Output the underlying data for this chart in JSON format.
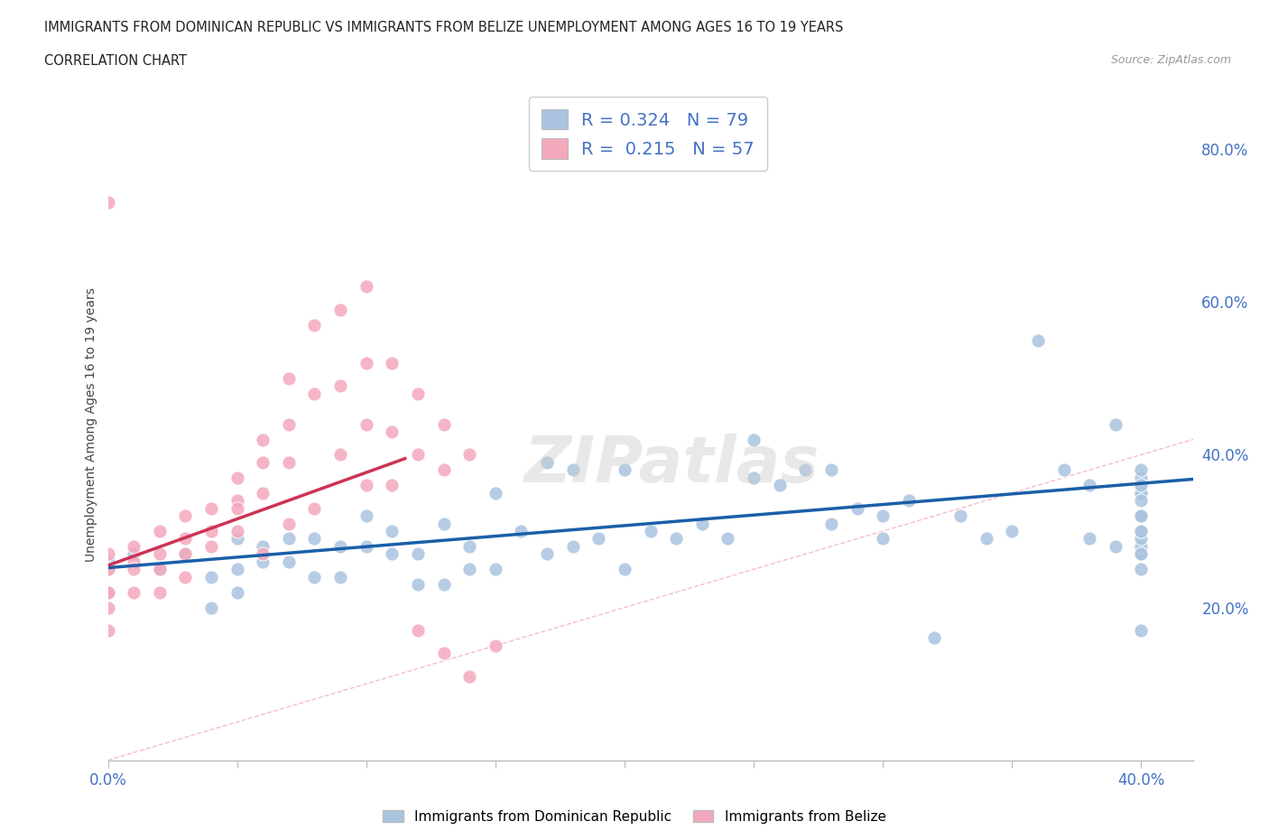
{
  "title_line1": "IMMIGRANTS FROM DOMINICAN REPUBLIC VS IMMIGRANTS FROM BELIZE UNEMPLOYMENT AMONG AGES 16 TO 19 YEARS",
  "title_line2": "CORRELATION CHART",
  "source": "Source: ZipAtlas.com",
  "ylabel": "Unemployment Among Ages 16 to 19 years",
  "xlim": [
    0.0,
    0.42
  ],
  "ylim": [
    0.0,
    0.88
  ],
  "xticks": [
    0.0,
    0.05,
    0.1,
    0.15,
    0.2,
    0.25,
    0.3,
    0.35,
    0.4
  ],
  "ytick_labels_right": [
    "20.0%",
    "40.0%",
    "60.0%",
    "80.0%"
  ],
  "ytick_vals_right": [
    0.2,
    0.4,
    0.6,
    0.8
  ],
  "blue_R": 0.324,
  "blue_N": 79,
  "pink_R": 0.215,
  "pink_N": 57,
  "blue_color": "#aac4e0",
  "pink_color": "#f4a8bc",
  "blue_line_color": "#1a5fa8",
  "pink_line_color": "#cc3355",
  "diagonal_color": "#f0b0c0",
  "legend_label_blue": "Immigrants from Dominican Republic",
  "legend_label_pink": "Immigrants from Belize",
  "blue_scatter_x": [
    0.0,
    0.01,
    0.02,
    0.03,
    0.04,
    0.04,
    0.05,
    0.05,
    0.05,
    0.06,
    0.06,
    0.07,
    0.07,
    0.08,
    0.08,
    0.09,
    0.09,
    0.1,
    0.1,
    0.11,
    0.11,
    0.12,
    0.12,
    0.13,
    0.13,
    0.14,
    0.14,
    0.15,
    0.15,
    0.16,
    0.17,
    0.17,
    0.18,
    0.18,
    0.19,
    0.2,
    0.2,
    0.21,
    0.22,
    0.23,
    0.24,
    0.25,
    0.25,
    0.26,
    0.27,
    0.28,
    0.28,
    0.29,
    0.3,
    0.3,
    0.31,
    0.32,
    0.33,
    0.34,
    0.35,
    0.36,
    0.37,
    0.38,
    0.38,
    0.39,
    0.39,
    0.4,
    0.4,
    0.4,
    0.4,
    0.4,
    0.4,
    0.4,
    0.4,
    0.4,
    0.4,
    0.4,
    0.4,
    0.4,
    0.4,
    0.4,
    0.4,
    0.4,
    0.4
  ],
  "blue_scatter_y": [
    0.26,
    0.27,
    0.25,
    0.27,
    0.24,
    0.2,
    0.22,
    0.25,
    0.29,
    0.26,
    0.28,
    0.26,
    0.29,
    0.24,
    0.29,
    0.24,
    0.28,
    0.28,
    0.32,
    0.27,
    0.3,
    0.23,
    0.27,
    0.23,
    0.31,
    0.25,
    0.28,
    0.25,
    0.35,
    0.3,
    0.27,
    0.39,
    0.28,
    0.38,
    0.29,
    0.25,
    0.38,
    0.3,
    0.29,
    0.31,
    0.29,
    0.37,
    0.42,
    0.36,
    0.38,
    0.31,
    0.38,
    0.33,
    0.29,
    0.32,
    0.34,
    0.16,
    0.32,
    0.29,
    0.3,
    0.55,
    0.38,
    0.29,
    0.36,
    0.28,
    0.44,
    0.3,
    0.32,
    0.27,
    0.35,
    0.32,
    0.36,
    0.28,
    0.37,
    0.27,
    0.35,
    0.32,
    0.36,
    0.34,
    0.29,
    0.38,
    0.3,
    0.25,
    0.17
  ],
  "pink_scatter_x": [
    0.0,
    0.0,
    0.0,
    0.0,
    0.0,
    0.0,
    0.0,
    0.0,
    0.01,
    0.01,
    0.01,
    0.01,
    0.02,
    0.02,
    0.02,
    0.02,
    0.03,
    0.03,
    0.03,
    0.03,
    0.04,
    0.04,
    0.04,
    0.05,
    0.05,
    0.05,
    0.05,
    0.06,
    0.06,
    0.06,
    0.06,
    0.07,
    0.07,
    0.07,
    0.07,
    0.08,
    0.08,
    0.08,
    0.09,
    0.09,
    0.09,
    0.1,
    0.1,
    0.1,
    0.1,
    0.11,
    0.11,
    0.11,
    0.12,
    0.12,
    0.12,
    0.13,
    0.13,
    0.13,
    0.14,
    0.14,
    0.15
  ],
  "pink_scatter_y": [
    0.73,
    0.22,
    0.25,
    0.27,
    0.25,
    0.22,
    0.2,
    0.17,
    0.28,
    0.26,
    0.25,
    0.22,
    0.3,
    0.27,
    0.25,
    0.22,
    0.32,
    0.29,
    0.27,
    0.24,
    0.33,
    0.3,
    0.28,
    0.37,
    0.34,
    0.33,
    0.3,
    0.42,
    0.39,
    0.35,
    0.27,
    0.5,
    0.44,
    0.39,
    0.31,
    0.57,
    0.48,
    0.33,
    0.59,
    0.49,
    0.4,
    0.62,
    0.52,
    0.44,
    0.36,
    0.52,
    0.43,
    0.36,
    0.48,
    0.4,
    0.17,
    0.44,
    0.38,
    0.14,
    0.4,
    0.11,
    0.15
  ],
  "blue_trend_x": [
    0.0,
    0.42
  ],
  "blue_trend_y": [
    0.252,
    0.368
  ],
  "pink_trend_x": [
    0.0,
    0.115
  ],
  "pink_trend_y": [
    0.255,
    0.395
  ],
  "watermark": "ZIPatlas",
  "background_color": "#ffffff",
  "grid_color": "#e8e8e8"
}
